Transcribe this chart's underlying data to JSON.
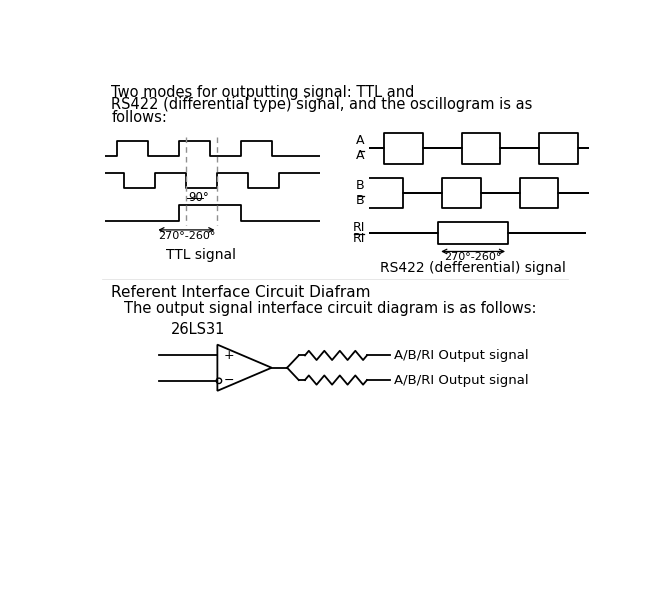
{
  "line1": "Two modes for outputting signal: TTL and",
  "line2": "RS422 (differential type) signal, and the oscillogram is as",
  "line3": "follows:",
  "ttl_label": "TTL signal",
  "rs422_label": "RS422 (defferential) signal",
  "annotation_90": "90°",
  "annotation_270_ttl": "270°-260°",
  "annotation_270_rs": "270°-260°",
  "ref_title": "Referent Interface Circuit Diafram",
  "ref_subtitle": "The output signal interface circuit diagram is as follows:",
  "ic_label": "26LS31",
  "output1_label": "A/B/RI Output signal",
  "output2_label": "A/B/RI Output signal",
  "background_color": "#ffffff",
  "line_color": "#000000",
  "dashed_color": "#909090",
  "gray_color": "#aaaaaa"
}
